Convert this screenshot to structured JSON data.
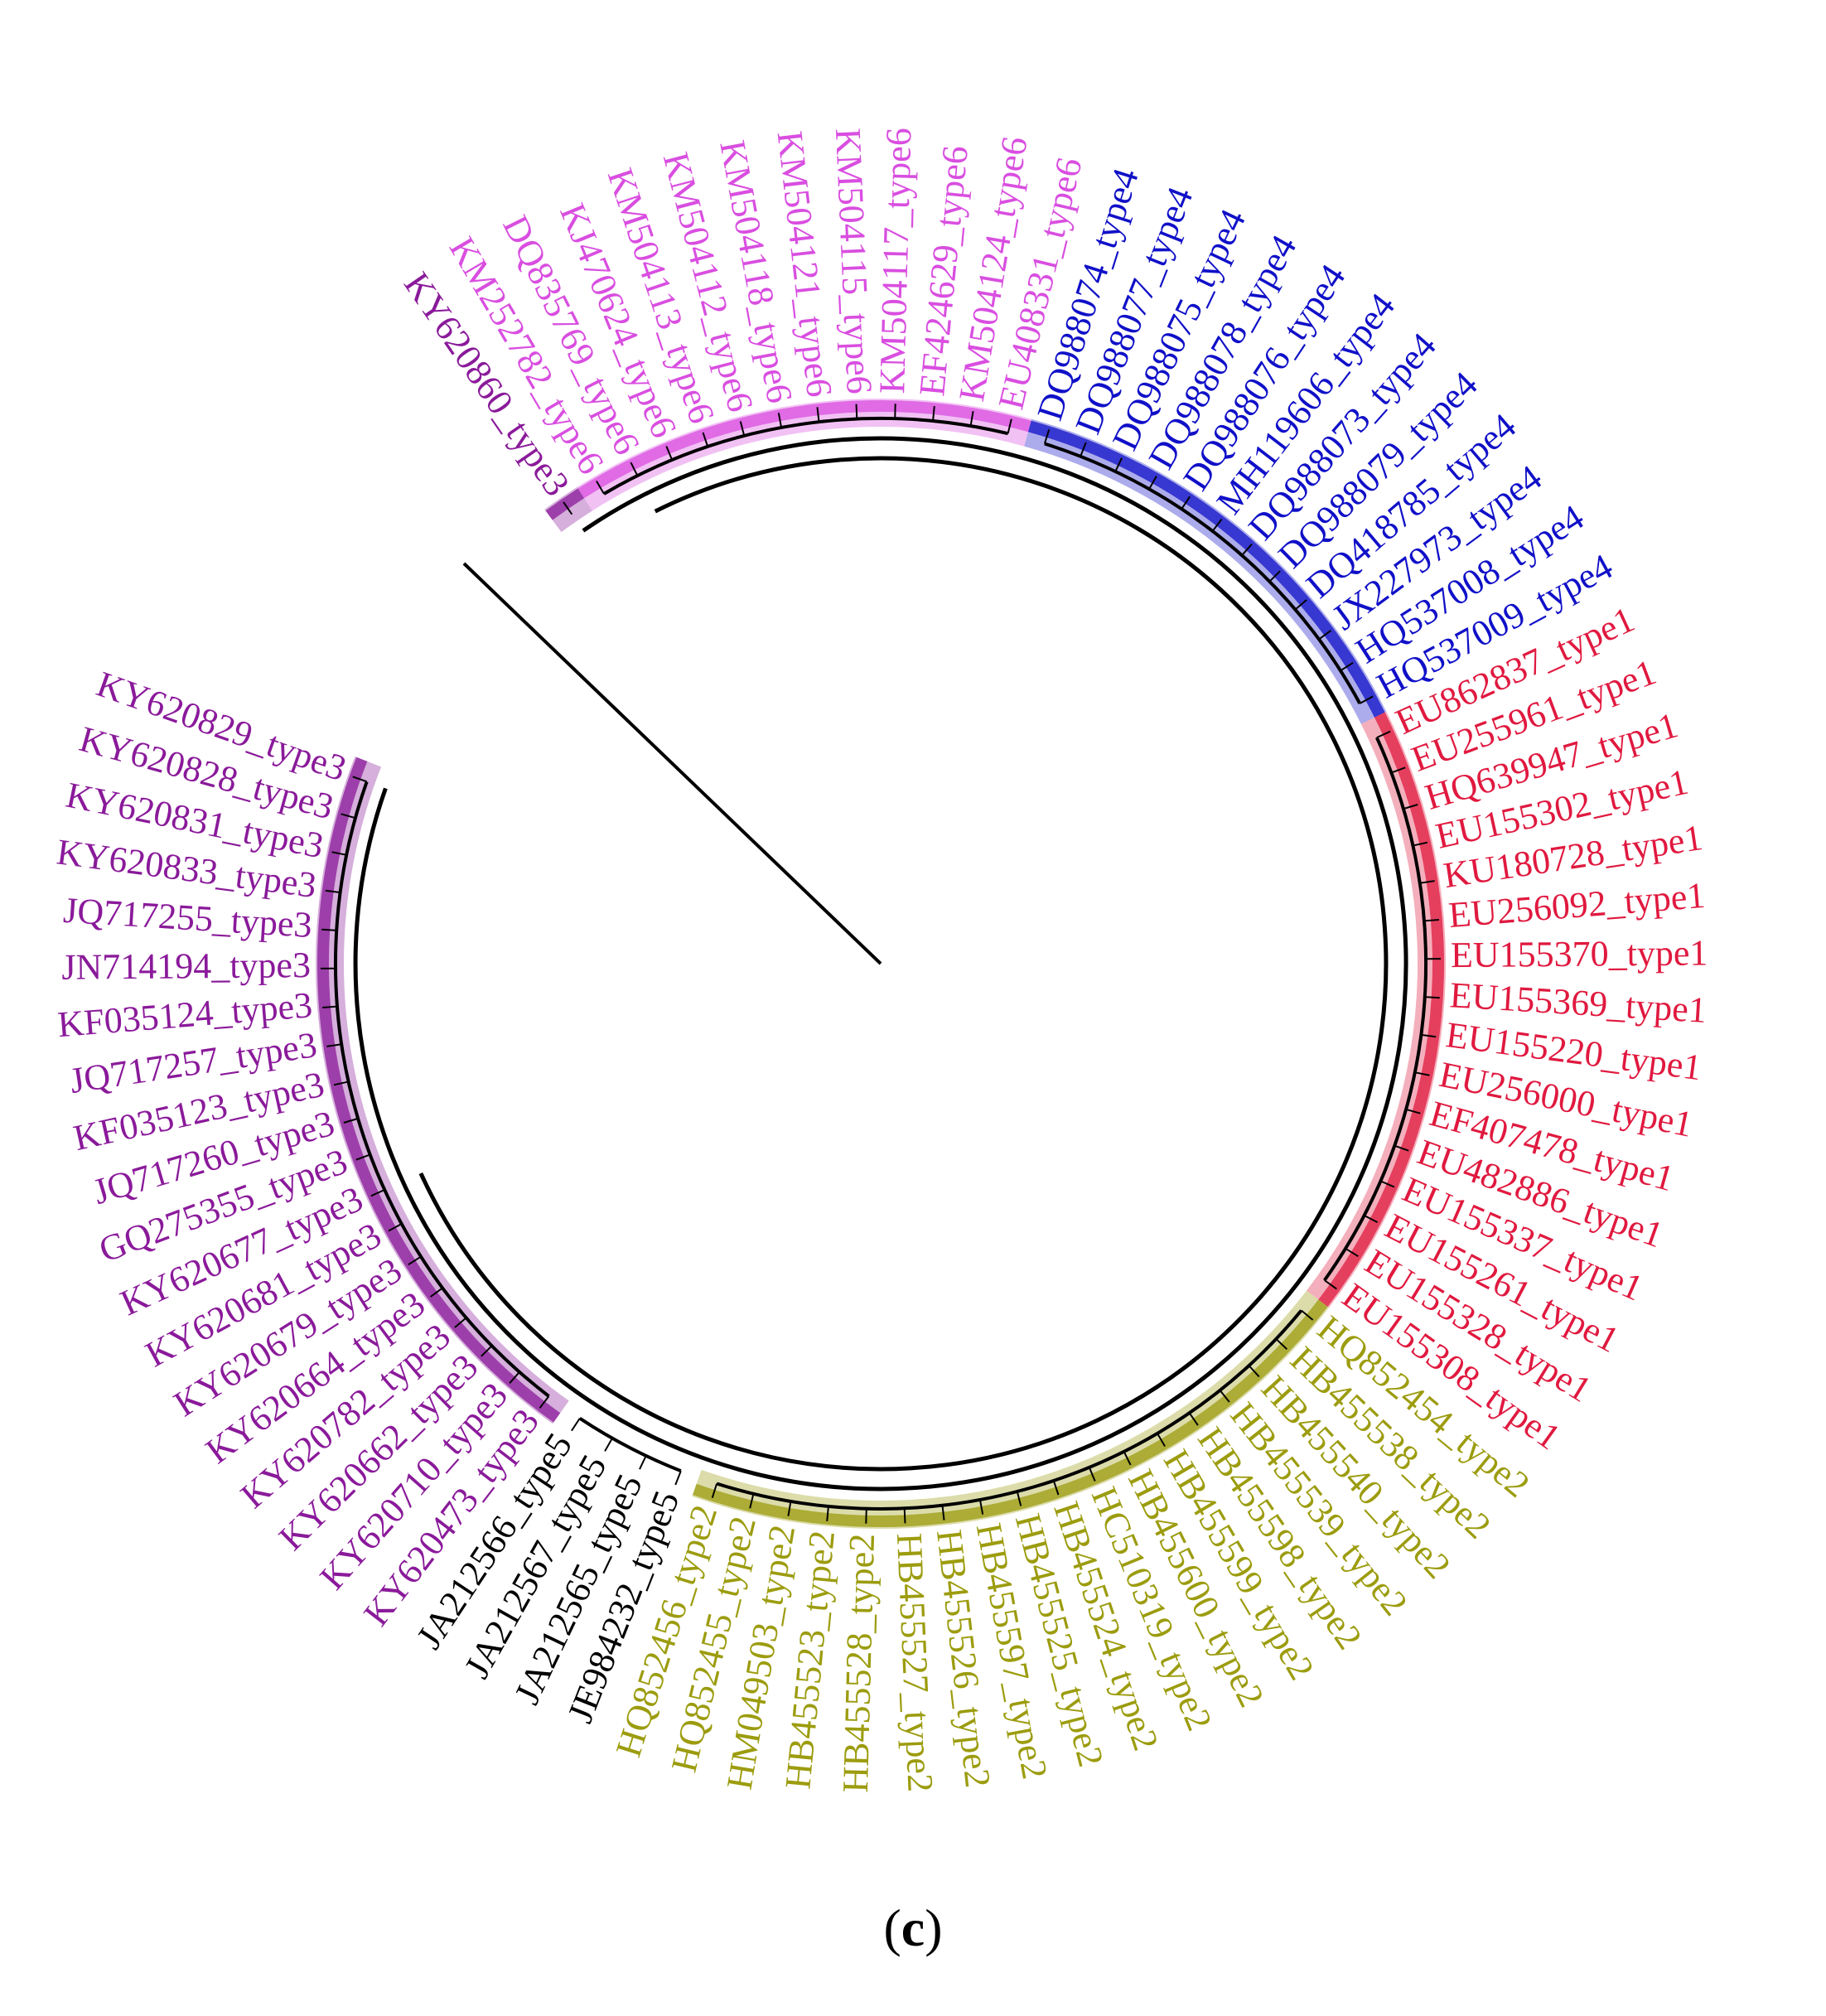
{
  "figure": {
    "panel_letter": "c",
    "colors": {
      "type1": "#e0193f",
      "type2": "#9c9c0f",
      "type3": "#8a1a9a",
      "type4": "#1010c8",
      "type5": "#000000",
      "type6": "#d94ee0",
      "branch": "#000000"
    },
    "leaves": [
      {
        "label": "KY620860_type3",
        "genotype": "type3"
      },
      {
        "label": "KM252782_type6",
        "genotype": "type6"
      },
      {
        "label": "DQ835769_type6",
        "genotype": "type6"
      },
      {
        "label": "KJ470624_type6",
        "genotype": "type6"
      },
      {
        "label": "KM504113_type6",
        "genotype": "type6"
      },
      {
        "label": "KM504112_type6",
        "genotype": "type6"
      },
      {
        "label": "KM504118_type6",
        "genotype": "type6"
      },
      {
        "label": "KM504121_type6",
        "genotype": "type6"
      },
      {
        "label": "KM504115_type6",
        "genotype": "type6"
      },
      {
        "label": "KM504117_type6",
        "genotype": "type6"
      },
      {
        "label": "EF424629_type6",
        "genotype": "type6"
      },
      {
        "label": "KM504124_type6",
        "genotype": "type6"
      },
      {
        "label": "EU408331_type6",
        "genotype": "type6"
      },
      {
        "label": "DQ988074_type4",
        "genotype": "type4"
      },
      {
        "label": "DQ988077_type4",
        "genotype": "type4"
      },
      {
        "label": "DQ988075_type4",
        "genotype": "type4"
      },
      {
        "label": "DQ988078_type4",
        "genotype": "type4"
      },
      {
        "label": "DQ988076_type4",
        "genotype": "type4"
      },
      {
        "label": "MH119606_type4",
        "genotype": "type4"
      },
      {
        "label": "DQ988073_type4",
        "genotype": "type4"
      },
      {
        "label": "DQ988079_type4",
        "genotype": "type4"
      },
      {
        "label": "DQ418785_type4",
        "genotype": "type4"
      },
      {
        "label": "JX227973_type4",
        "genotype": "type4"
      },
      {
        "label": "HQ537008_type4",
        "genotype": "type4"
      },
      {
        "label": "HQ537009_type4",
        "genotype": "type4"
      },
      {
        "label": "EU862837_type1",
        "genotype": "type1"
      },
      {
        "label": "EU255961_type1",
        "genotype": "type1"
      },
      {
        "label": "HQ639947_type1",
        "genotype": "type1"
      },
      {
        "label": "EU155302_type1",
        "genotype": "type1"
      },
      {
        "label": "KU180728_type1",
        "genotype": "type1"
      },
      {
        "label": "EU256092_type1",
        "genotype": "type1"
      },
      {
        "label": "EU155370_type1",
        "genotype": "type1"
      },
      {
        "label": "EU155369_type1",
        "genotype": "type1"
      },
      {
        "label": "EU155220_type1",
        "genotype": "type1"
      },
      {
        "label": "EU256000_type1",
        "genotype": "type1"
      },
      {
        "label": "EF407478_type1",
        "genotype": "type1"
      },
      {
        "label": "EU482886_type1",
        "genotype": "type1"
      },
      {
        "label": "EU155337_type1",
        "genotype": "type1"
      },
      {
        "label": "EU155261_type1",
        "genotype": "type1"
      },
      {
        "label": "EU155328_type1",
        "genotype": "type1"
      },
      {
        "label": "EU155308_type1",
        "genotype": "type1"
      },
      {
        "label": "HQ852454_type2",
        "genotype": "type2"
      },
      {
        "label": "HB455538_type2",
        "genotype": "type2"
      },
      {
        "label": "HB455540_type2",
        "genotype": "type2"
      },
      {
        "label": "HB455539_type2",
        "genotype": "type2"
      },
      {
        "label": "HB455598_type2",
        "genotype": "type2"
      },
      {
        "label": "HB455599_type2",
        "genotype": "type2"
      },
      {
        "label": "HB455600_type2",
        "genotype": "type2"
      },
      {
        "label": "HC510319_type2",
        "genotype": "type2"
      },
      {
        "label": "HB455524_type2",
        "genotype": "type2"
      },
      {
        "label": "HB455525_type2",
        "genotype": "type2"
      },
      {
        "label": "HB455597_type2",
        "genotype": "type2"
      },
      {
        "label": "HB455526_type2",
        "genotype": "type2"
      },
      {
        "label": "HB455527_type2",
        "genotype": "type2"
      },
      {
        "label": "HB455528_type2",
        "genotype": "type2"
      },
      {
        "label": "HB455523_type2",
        "genotype": "type2"
      },
      {
        "label": "HM049503_type2",
        "genotype": "type2"
      },
      {
        "label": "HQ852455_type2",
        "genotype": "type2"
      },
      {
        "label": "HQ852456_type2",
        "genotype": "type2"
      },
      {
        "label": "JE984232_type5",
        "genotype": "type5"
      },
      {
        "label": "JA212565_type5",
        "genotype": "type5"
      },
      {
        "label": "JA212567_type5",
        "genotype": "type5"
      },
      {
        "label": "JA212566_type5",
        "genotype": "type5"
      },
      {
        "label": "KY620473_type3",
        "genotype": "type3"
      },
      {
        "label": "KY620710_type3",
        "genotype": "type3"
      },
      {
        "label": "KY620662_type3",
        "genotype": "type3"
      },
      {
        "label": "KY620782_type3",
        "genotype": "type3"
      },
      {
        "label": "KY620664_type3",
        "genotype": "type3"
      },
      {
        "label": "KY620679_type3",
        "genotype": "type3"
      },
      {
        "label": "KY620681_type3",
        "genotype": "type3"
      },
      {
        "label": "KY620677_type3",
        "genotype": "type3"
      },
      {
        "label": "GQ275355_type3",
        "genotype": "type3"
      },
      {
        "label": "JQ717260_type3",
        "genotype": "type3"
      },
      {
        "label": "KF035123_type3",
        "genotype": "type3"
      },
      {
        "label": "JQ717257_type3",
        "genotype": "type3"
      },
      {
        "label": "KF035124_type3",
        "genotype": "type3"
      },
      {
        "label": "JN714194_type3",
        "genotype": "type3"
      },
      {
        "label": "JQ717255_type3",
        "genotype": "type3"
      },
      {
        "label": "KY620833_type3",
        "genotype": "type3"
      },
      {
        "label": "KY620831_type3",
        "genotype": "type3"
      },
      {
        "label": "KY620828_type3",
        "genotype": "type3"
      },
      {
        "label": "KY620829_type3",
        "genotype": "type3"
      }
    ]
  }
}
